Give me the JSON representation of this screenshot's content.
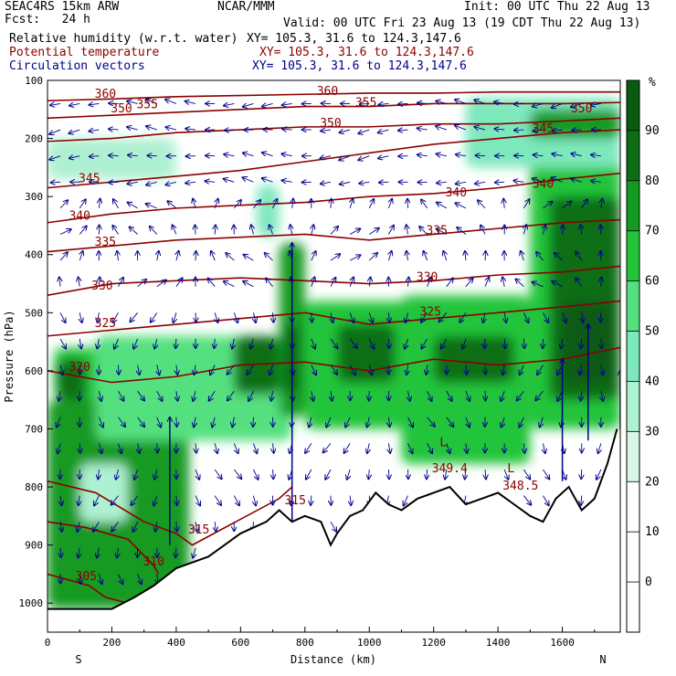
{
  "header": {
    "model": "SEAC4RS 15km ARW",
    "fcst": "Fcst:   24 h",
    "org": "NCAR/MMM",
    "init": "Init: 00 UTC Thu 22 Aug 13",
    "valid": "Valid: 00 UTC Fri 23 Aug 13 (19 CDT Thu 22 Aug 13)",
    "field1_name": "Relative humidity (w.r.t. water)",
    "field1_xy": "XY= 105.3, 31.6 to 124.3,147.6",
    "field2_name": "Potential temperature",
    "field2_xy": "XY= 105.3, 31.6 to 124.3,147.6",
    "field3_name": "Circulation vectors",
    "field3_xy": "XY= 105.3, 31.6 to 124.3,147.6"
  },
  "colors": {
    "theta": "#8b0000",
    "vectors": "#00008b",
    "field2_text": "#8b0000",
    "field3_text": "#00008b",
    "terrain": "#000000"
  },
  "chart_data": {
    "type": "heatmap",
    "title": "Relative humidity (w.r.t. water)",
    "xlabel": "Distance (km)",
    "ylabel": "Pressure (hPa)",
    "xlim": [
      0,
      1780
    ],
    "ylim": [
      1050,
      100
    ],
    "x_ticks": [
      "0",
      "200",
      "400",
      "600",
      "800",
      "1000",
      "1200",
      "1400",
      "1600"
    ],
    "y_ticks": [
      "100",
      "200",
      "300",
      "400",
      "500",
      "600",
      "700",
      "800",
      "900",
      "1000"
    ],
    "x_endpoints": {
      "left": "S",
      "right": "N"
    },
    "colorbar": {
      "unit": "%",
      "levels": [
        "0",
        "10",
        "20",
        "30",
        "40",
        "50",
        "60",
        "70",
        "80",
        "90"
      ],
      "colors": [
        "#ffffff",
        "#ffffff",
        "#ffffff",
        "#d8f5e8",
        "#aef0d2",
        "#7ee8bd",
        "#55e07f",
        "#22c43a",
        "#129a22",
        "#0d6e16",
        "#0a5a12"
      ]
    },
    "rh_regions": [
      {
        "x": [
          0,
          440
        ],
        "p": [
          650,
          1010
        ],
        "rh": 70
      },
      {
        "x": [
          20,
          200
        ],
        "p": [
          560,
          650
        ],
        "rh": 60
      },
      {
        "x": [
          30,
          120
        ],
        "p": [
          580,
          650
        ],
        "rh": 80
      },
      {
        "x": [
          100,
          250
        ],
        "p": [
          760,
          860
        ],
        "rh": 30
      },
      {
        "x": [
          300,
          440
        ],
        "p": [
          680,
          900
        ],
        "rh": 70
      },
      {
        "x": [
          150,
          760
        ],
        "p": [
          540,
          720
        ],
        "rh": 55
      },
      {
        "x": [
          580,
          720
        ],
        "p": [
          540,
          640
        ],
        "rh": 80
      },
      {
        "x": [
          720,
          800
        ],
        "p": [
          380,
          680
        ],
        "rh": 70
      },
      {
        "x": [
          740,
          780
        ],
        "p": [
          520,
          640
        ],
        "rh": 90
      },
      {
        "x": [
          800,
          1120
        ],
        "p": [
          480,
          700
        ],
        "rh": 60
      },
      {
        "x": [
          900,
          1080
        ],
        "p": [
          520,
          620
        ],
        "rh": 80
      },
      {
        "x": [
          1100,
          1500
        ],
        "p": [
          470,
          760
        ],
        "rh": 60
      },
      {
        "x": [
          1200,
          1450
        ],
        "p": [
          540,
          620
        ],
        "rh": 80
      },
      {
        "x": [
          1500,
          1780
        ],
        "p": [
          200,
          700
        ],
        "rh": 60
      },
      {
        "x": [
          1560,
          1780
        ],
        "p": [
          300,
          650
        ],
        "rh": 80
      },
      {
        "x": [
          1600,
          1760
        ],
        "p": [
          480,
          620
        ],
        "rh": 90
      },
      {
        "x": [
          1300,
          1780
        ],
        "p": [
          130,
          250
        ],
        "rh": 40
      },
      {
        "x": [
          1500,
          1780
        ],
        "p": [
          150,
          200
        ],
        "rh": 70
      },
      {
        "x": [
          0,
          400
        ],
        "p": [
          200,
          270
        ],
        "rh": 30
      },
      {
        "x": [
          650,
          720
        ],
        "p": [
          280,
          370
        ],
        "rh": 40
      }
    ],
    "theta_contours": [
      {
        "value": 305,
        "label": "305",
        "x": [
          0,
          130,
          180,
          250
        ],
        "p": [
          950,
          970,
          990,
          1000
        ]
      },
      {
        "value": 310,
        "label": "310",
        "x": [
          0,
          120,
          250,
          330,
          345
        ],
        "p": [
          860,
          870,
          890,
          935,
          950
        ]
      },
      {
        "value": 315,
        "label": "315",
        "x": [
          0,
          150,
          300,
          400,
          450,
          720,
          760
        ],
        "p": [
          790,
          810,
          860,
          880,
          900,
          820,
          800
        ]
      },
      {
        "value": 320,
        "label": "320",
        "x": [
          0,
          200,
          400,
          600,
          800,
          1000,
          1200,
          1400,
          1600,
          1780
        ],
        "p": [
          600,
          620,
          610,
          590,
          585,
          600,
          580,
          590,
          580,
          560
        ]
      },
      {
        "value": 325,
        "label": "325",
        "x": [
          0,
          200,
          400,
          600,
          800,
          1000,
          1200,
          1400,
          1600,
          1780
        ],
        "p": [
          540,
          530,
          520,
          510,
          500,
          520,
          510,
          500,
          490,
          480
        ]
      },
      {
        "value": 330,
        "label": "330",
        "x": [
          0,
          200,
          400,
          600,
          800,
          1000,
          1200,
          1400,
          1600,
          1780
        ],
        "p": [
          470,
          450,
          445,
          440,
          445,
          450,
          445,
          435,
          430,
          420
        ]
      },
      {
        "value": 335,
        "label": "335",
        "x": [
          0,
          200,
          400,
          600,
          800,
          1000,
          1200,
          1400,
          1600,
          1780
        ],
        "p": [
          395,
          385,
          375,
          370,
          365,
          375,
          365,
          355,
          345,
          340
        ]
      },
      {
        "value": 340,
        "label": "340",
        "x": [
          0,
          200,
          400,
          600,
          800,
          1000,
          1200,
          1400,
          1600,
          1780
        ],
        "p": [
          345,
          330,
          320,
          315,
          310,
          300,
          295,
          285,
          270,
          260
        ]
      },
      {
        "value": 345,
        "label": "345",
        "x": [
          0,
          200,
          400,
          600,
          800,
          1000,
          1200,
          1400,
          1600,
          1780
        ],
        "p": [
          285,
          275,
          265,
          255,
          240,
          225,
          210,
          200,
          190,
          185
        ]
      },
      {
        "value": 350,
        "label": "350",
        "x": [
          0,
          200,
          400,
          600,
          800,
          1000,
          1200,
          1400,
          1600,
          1780
        ],
        "p": [
          205,
          200,
          190,
          185,
          180,
          180,
          175,
          175,
          170,
          165
        ]
      },
      {
        "value": 355,
        "label": "355",
        "x": [
          0,
          200,
          400,
          600,
          800,
          1000,
          1200,
          1400,
          1600,
          1780
        ],
        "p": [
          165,
          160,
          155,
          150,
          145,
          145,
          140,
          140,
          140,
          138
        ]
      },
      {
        "value": 360,
        "label": "360",
        "x": [
          0,
          200,
          400,
          600,
          800,
          1000,
          1200,
          1400,
          1600,
          1780
        ],
        "p": [
          135,
          132,
          128,
          126,
          124,
          122,
          122,
          120,
          120,
          120
        ]
      }
    ],
    "theta_label_positions": [
      {
        "text": "360",
        "x": 180,
        "p": 130
      },
      {
        "text": "355",
        "x": 310,
        "p": 148
      },
      {
        "text": "350",
        "x": 230,
        "p": 155
      },
      {
        "text": "345",
        "x": 130,
        "p": 275
      },
      {
        "text": "340",
        "x": 100,
        "p": 340
      },
      {
        "text": "335",
        "x": 180,
        "p": 385
      },
      {
        "text": "330",
        "x": 170,
        "p": 460
      },
      {
        "text": "325",
        "x": 180,
        "p": 525
      },
      {
        "text": "320",
        "x": 100,
        "p": 600
      },
      {
        "text": "360",
        "x": 870,
        "p": 125
      },
      {
        "text": "355",
        "x": 990,
        "p": 145
      },
      {
        "text": "350",
        "x": 880,
        "p": 180
      },
      {
        "text": "345",
        "x": 1540,
        "p": 190
      },
      {
        "text": "340",
        "x": 1270,
        "p": 300
      },
      {
        "text": "340",
        "x": 1540,
        "p": 285
      },
      {
        "text": "335",
        "x": 1210,
        "p": 365
      },
      {
        "text": "330",
        "x": 1180,
        "p": 445
      },
      {
        "text": "325",
        "x": 1190,
        "p": 505
      },
      {
        "text": "350",
        "x": 1660,
        "p": 155
      },
      {
        "text": "315",
        "x": 770,
        "p": 830
      },
      {
        "text": "315",
        "x": 470,
        "p": 880
      },
      {
        "text": "310",
        "x": 330,
        "p": 935
      },
      {
        "text": "305",
        "x": 120,
        "p": 960
      },
      {
        "text": "349.4",
        "x": 1250,
        "p": 775
      },
      {
        "text": "348.5",
        "x": 1470,
        "p": 805
      }
    ],
    "low_markers": [
      {
        "text": "L",
        "x": 1230,
        "p": 730
      },
      {
        "text": "L",
        "x": 1440,
        "p": 775
      }
    ],
    "terrain": {
      "x": [
        0,
        200,
        270,
        330,
        400,
        450,
        500,
        550,
        600,
        680,
        720,
        760,
        800,
        850,
        880,
        900,
        940,
        980,
        1020,
        1060,
        1100,
        1150,
        1200,
        1250,
        1300,
        1350,
        1400,
        1450,
        1500,
        1540,
        1580,
        1620,
        1660,
        1700,
        1740,
        1770
      ],
      "p": [
        1010,
        1010,
        990,
        970,
        940,
        930,
        920,
        900,
        880,
        860,
        840,
        860,
        850,
        860,
        900,
        880,
        850,
        840,
        810,
        830,
        840,
        820,
        810,
        800,
        830,
        820,
        810,
        830,
        850,
        860,
        820,
        800,
        840,
        820,
        760,
        700
      ]
    },
    "updrafts": [
      {
        "x": 380,
        "p_bottom": 900,
        "p_top": 680
      },
      {
        "x": 760,
        "p_bottom": 860,
        "p_top": 380
      },
      {
        "x": 1600,
        "p_bottom": 790,
        "p_top": 580
      },
      {
        "x": 1680,
        "p_bottom": 720,
        "p_top": 520
      },
      {
        "x": 1780,
        "p_bottom": 700,
        "p_top": 600
      }
    ]
  }
}
